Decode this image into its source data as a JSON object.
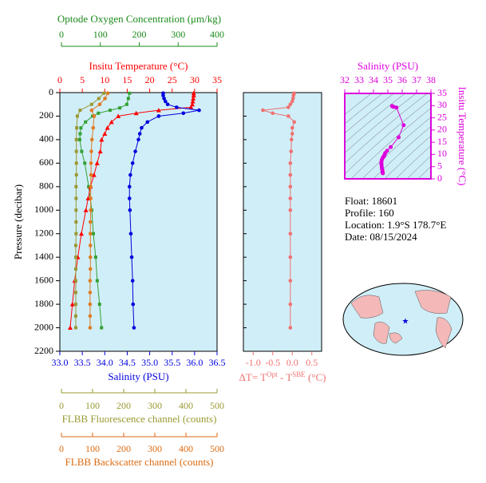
{
  "chart_data": [
    {
      "type": "profile",
      "ylabel": "Pressure (decibar)",
      "ylim": [
        0,
        2200
      ],
      "invert_y": true,
      "yticks": [
        0,
        200,
        400,
        600,
        800,
        1000,
        1200,
        1400,
        1600,
        1800,
        2000,
        2200
      ],
      "axes": [
        {
          "label": "Optode Oxygen Concentration (μm/kg)",
          "position": "top",
          "color": "#1a8a1a",
          "xlim": [
            0,
            400
          ],
          "xticks": [
            0,
            100,
            200,
            300,
            400
          ],
          "series": {
            "color": "#33a033",
            "marker": "square",
            "pressure": [
              5,
              50,
              100,
              130,
              150,
              175,
              200,
              250,
              300,
              350,
              400,
              500,
              600,
              800,
              1000,
              1200,
              1400,
              1600,
              1800,
              2000
            ],
            "values": [
              175,
              172,
              168,
              150,
              125,
              95,
              80,
              62,
              50,
              48,
              47,
              52,
              60,
              70,
              78,
              82,
              88,
              92,
              98,
              103
            ]
          }
        },
        {
          "label": "Insitu Temperature (°C)",
          "position": "top",
          "color": "#ff0000",
          "xlim": [
            0,
            35
          ],
          "xticks": [
            0,
            5,
            10,
            15,
            20,
            25,
            30,
            35
          ],
          "series": {
            "color": "#ff0000",
            "marker": "triangle",
            "pressure": [
              5,
              25,
              50,
              75,
              100,
              125,
              150,
              175,
              200,
              250,
              300,
              350,
              400,
              500,
              600,
              700,
              800,
              900,
              1000,
              1200,
              1400,
              1600,
              1800,
              2000
            ],
            "values": [
              29.8,
              29.8,
              29.7,
              29.6,
              29.5,
              29.2,
              22.0,
              17.0,
              13.0,
              11.5,
              10.6,
              10.0,
              9.3,
              9.0,
              8.3,
              7.6,
              6.8,
              6.3,
              5.8,
              4.8,
              4.0,
              3.3,
              2.8,
              2.3
            ]
          }
        },
        {
          "label": "Salinity (PSU)",
          "position": "bottom",
          "color": "#0000dd",
          "xlim": [
            33,
            36.5
          ],
          "xticks": [
            {
              "value": 33,
              "label": "33.0"
            },
            {
              "value": 33.5,
              "label": "33.5"
            },
            {
              "value": 34,
              "label": "34.0"
            },
            {
              "value": 34.5,
              "label": "34.5"
            },
            {
              "value": 35,
              "label": "35.0"
            },
            {
              "value": 35.5,
              "label": "35.5"
            },
            {
              "value": 36,
              "label": "36.0"
            },
            {
              "value": 36.5,
              "label": "36.5"
            }
          ],
          "series": {
            "color": "#0000dd",
            "marker": "circle",
            "pressure": [
              5,
              25,
              50,
              75,
              100,
              125,
              150,
              175,
              200,
              250,
              300,
              350,
              400,
              500,
              600,
              700,
              800,
              900,
              1000,
              1200,
              1400,
              1600,
              1800,
              2000
            ],
            "values": [
              35.3,
              35.3,
              35.32,
              35.35,
              35.4,
              35.6,
              36.1,
              35.75,
              35.2,
              34.95,
              34.82,
              34.78,
              34.75,
              34.68,
              34.62,
              34.57,
              34.55,
              34.55,
              34.56,
              34.58,
              34.6,
              34.62,
              34.63,
              34.65
            ]
          }
        },
        {
          "label": "FLBB Fluorescence channel (counts)",
          "position": "bottom",
          "color": "#999933",
          "xlim": [
            0,
            500
          ],
          "xticks": [
            0,
            100,
            200,
            300,
            400,
            500
          ],
          "series": {
            "color": "#999933",
            "marker": "square",
            "pressure": [
              5,
              50,
              100,
              150,
              200,
              300,
              400,
              500,
              600,
              700,
              800,
              900,
              1000,
              1100,
              1200,
              1300,
              1400,
              1500,
              1600,
              1700,
              1800,
              1900,
              2000
            ],
            "values": [
              136,
              120,
              97,
              60,
              51,
              49,
              48,
              48,
              48,
              48,
              47,
              47,
              47,
              47,
              47,
              46,
              46,
              46,
              46,
              46,
              46,
              46,
              46
            ]
          }
        },
        {
          "label": "FLBB Backscatter channel (counts)",
          "position": "bottom",
          "color": "#dd6a10",
          "xlim": [
            0,
            500
          ],
          "xticks": [
            0,
            100,
            200,
            300,
            400,
            500
          ],
          "series": {
            "color": "#e07a20",
            "marker": "circle",
            "pressure": [
              5,
              50,
              100,
              150,
              200,
              300,
              400,
              500,
              600,
              700,
              800,
              900,
              1000,
              1100,
              1200,
              1300,
              1400,
              1500,
              1600,
              1700,
              1800,
              1900,
              2000
            ],
            "values": [
              149,
              140,
              123,
              97,
              105,
              102,
              98,
              96,
              95,
              95,
              94,
              94,
              94,
              93,
              93,
              93,
              93,
              93,
              92,
              92,
              92,
              92,
              92
            ]
          }
        }
      ]
    },
    {
      "type": "difference",
      "xlabel_parts": [
        "ΔT= T",
        "Opt",
        " - T",
        "SBE",
        " (°C)"
      ],
      "color": "#f07070",
      "xlim": [
        -1.25,
        0.75
      ],
      "xticks": [
        {
          "value": -1,
          "label": "-1.0"
        },
        {
          "value": -0.5,
          "label": "-0.5"
        },
        {
          "value": 0,
          "label": "0.0"
        },
        {
          "value": 0.5,
          "label": "0.5"
        }
      ],
      "ylim": [
        0,
        2200
      ],
      "invert_y": true,
      "pressure": [
        5,
        25,
        50,
        75,
        100,
        125,
        150,
        175,
        200,
        250,
        300,
        350,
        400,
        500,
        600,
        700,
        800,
        900,
        1000,
        1200,
        1400,
        1600,
        1800,
        2000
      ],
      "values": [
        0.05,
        0.03,
        0.02,
        0.0,
        -0.05,
        -0.1,
        -0.75,
        -0.5,
        -0.1,
        0.05,
        0.0,
        0.0,
        -0.02,
        -0.03,
        -0.05,
        -0.05,
        -0.05,
        -0.05,
        -0.05,
        -0.05,
        -0.05,
        -0.05,
        -0.05,
        -0.05
      ]
    },
    {
      "type": "ts",
      "xlabel": "Salinity (PSU)",
      "ylabel": "Insitu Temperature (°C)",
      "color": "#dd00dd",
      "xlim": [
        32,
        38
      ],
      "xticks": [
        32,
        33,
        34,
        35,
        36,
        37,
        38
      ],
      "ylim": [
        0,
        35
      ],
      "yticks": [
        0,
        5,
        10,
        15,
        20,
        25,
        30,
        35
      ]
    }
  ],
  "info_lines": [
    "Float:  18601",
    "Profile:  160",
    "Location:  1.9°S  178.7°E",
    "Date:  08/15/2024"
  ]
}
